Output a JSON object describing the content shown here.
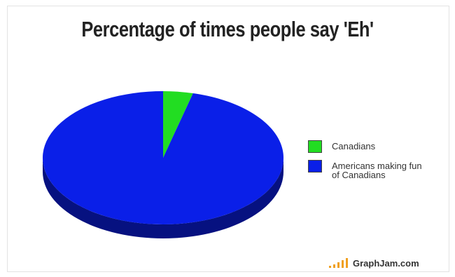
{
  "chart_data": {
    "type": "pie",
    "title": "Percentage of times people say 'Eh'",
    "slices": [
      {
        "label": "Canadians",
        "value": 4,
        "color": "#22dd22"
      },
      {
        "label": "Americans making fun of Canadians",
        "value": 96,
        "color": "#0a1fe8"
      }
    ],
    "legend_position": "right",
    "style": "3d"
  },
  "legend": {
    "items": [
      {
        "label": "Canadians",
        "color": "#22dd22"
      },
      {
        "label": "Americans making fun of Canadians",
        "color": "#0a1fe8"
      }
    ]
  },
  "brand": {
    "text": "GraphJam.com",
    "icon": "bar-signal-icon",
    "color": "#f0a020"
  }
}
